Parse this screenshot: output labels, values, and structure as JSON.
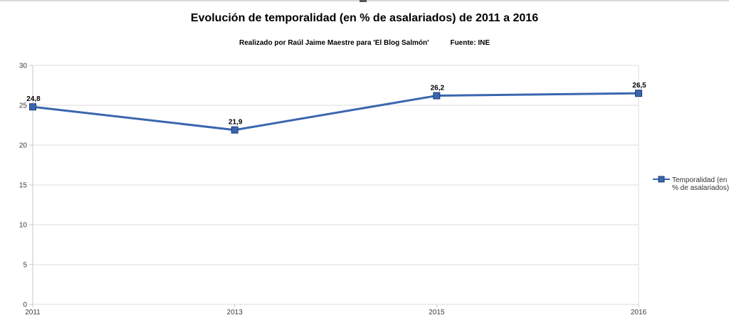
{
  "chart_data": {
    "type": "line",
    "title": "Evolución de temporalidad (en % de asalariados) de 2011 a 2016",
    "credit": "Realizado por Raúl Jaime Maestre para 'El Blog Salmón'",
    "source": "Fuente: INE",
    "categories": [
      "2011",
      "2013",
      "2015",
      "2016"
    ],
    "series": [
      {
        "name": "Temporalidad (en % de asalariados)",
        "values": [
          24.8,
          21.9,
          26.2,
          26.5
        ]
      }
    ],
    "point_labels": [
      "24,8",
      "21,9",
      "26,2",
      "26,5"
    ],
    "xlabel": "",
    "ylabel": "",
    "ylim": [
      0,
      30
    ],
    "ytick_step": 5,
    "ytick_labels": [
      "0",
      "5",
      "10",
      "15",
      "20",
      "25",
      "30"
    ],
    "grid": true,
    "gridlines": "horizontal",
    "legend_position": "right",
    "legend_lines": [
      "Temporalidad (en",
      "% de asalariados)"
    ],
    "colors": {
      "line": "#3A66AE",
      "marker_fill": "#3A66AE",
      "marker_border": "#1B3C7C",
      "grid": "#dcdcdc",
      "axis": "#c9c9c9",
      "tick_text": "#3c3c3c",
      "point_label_text": "#000000",
      "legend_text": "#333333",
      "background": "#ffffff"
    }
  }
}
